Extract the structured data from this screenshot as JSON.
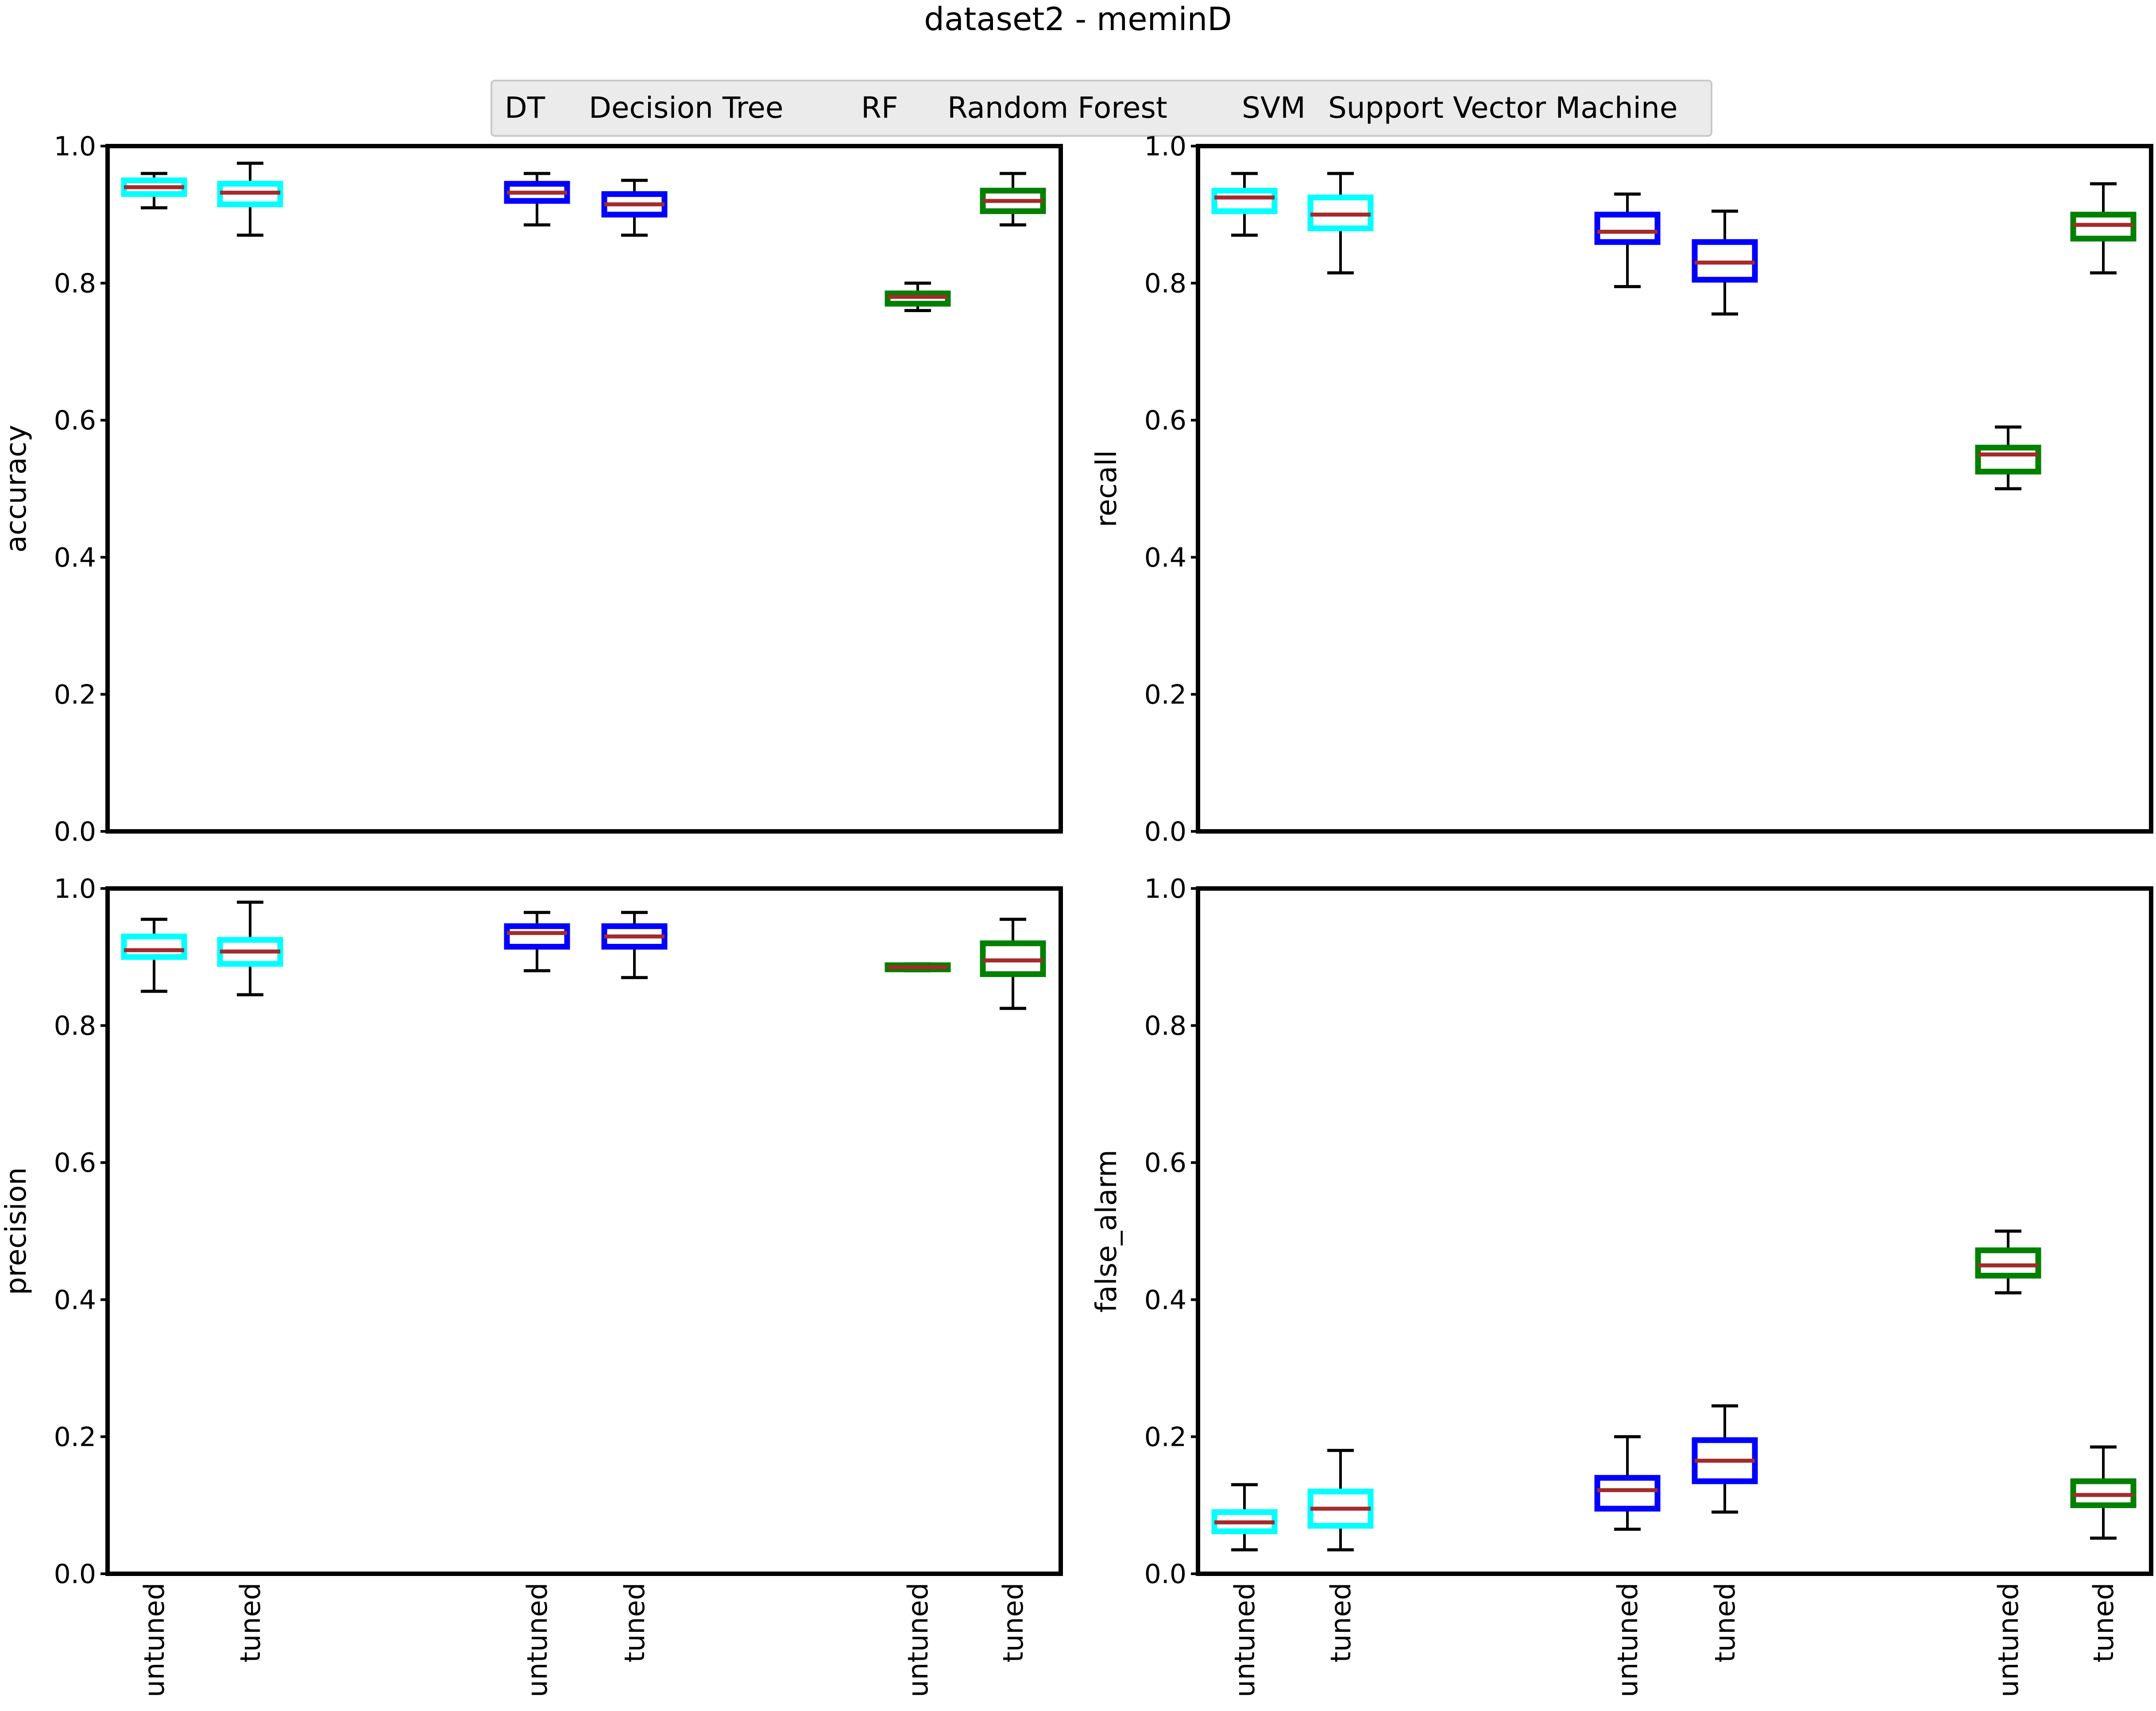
{
  "chart_data": {
    "type": "boxplot",
    "title": "dataset2 - meminD",
    "legend": {
      "placement": "top-center",
      "entries": [
        {
          "abbr": "DT",
          "label": "Decision Tree",
          "color": "#00ffff"
        },
        {
          "abbr": "RF",
          "label": "Random Forest",
          "color": "#0000ff"
        },
        {
          "abbr": "SVM",
          "label": "Support Vector Machine",
          "color": "#008000"
        }
      ]
    },
    "categories": [
      "untuned",
      "tuned",
      "untuned",
      "tuned",
      "untuned",
      "tuned"
    ],
    "group_colors": [
      "#00ffff",
      "#00ffff",
      "#0000ff",
      "#0000ff",
      "#008000",
      "#008000"
    ],
    "median_color": "#a52a2a",
    "ylim": [
      0,
      1.0
    ],
    "yticks": [
      "0.0",
      "0.2",
      "0.4",
      "0.6",
      "0.8",
      "1.0"
    ],
    "grid": false,
    "panels": [
      {
        "ylabel": "accuracy",
        "boxes": [
          {
            "min": 0.91,
            "q1": 0.93,
            "median": 0.94,
            "q3": 0.95,
            "max": 0.96
          },
          {
            "min": 0.87,
            "q1": 0.915,
            "median": 0.932,
            "q3": 0.945,
            "max": 0.975
          },
          {
            "min": 0.885,
            "q1": 0.92,
            "median": 0.932,
            "q3": 0.945,
            "max": 0.96
          },
          {
            "min": 0.87,
            "q1": 0.9,
            "median": 0.915,
            "q3": 0.93,
            "max": 0.95
          },
          {
            "min": 0.76,
            "q1": 0.77,
            "median": 0.78,
            "q3": 0.785,
            "max": 0.8
          },
          {
            "min": 0.885,
            "q1": 0.905,
            "median": 0.92,
            "q3": 0.935,
            "max": 0.96
          }
        ]
      },
      {
        "ylabel": "recall",
        "boxes": [
          {
            "min": 0.87,
            "q1": 0.905,
            "median": 0.925,
            "q3": 0.935,
            "max": 0.96
          },
          {
            "min": 0.815,
            "q1": 0.88,
            "median": 0.9,
            "q3": 0.925,
            "max": 0.96
          },
          {
            "min": 0.795,
            "q1": 0.86,
            "median": 0.875,
            "q3": 0.9,
            "max": 0.93
          },
          {
            "min": 0.755,
            "q1": 0.805,
            "median": 0.83,
            "q3": 0.86,
            "max": 0.905
          },
          {
            "min": 0.5,
            "q1": 0.525,
            "median": 0.55,
            "q3": 0.56,
            "max": 0.59
          },
          {
            "min": 0.815,
            "q1": 0.865,
            "median": 0.885,
            "q3": 0.9,
            "max": 0.945
          }
        ]
      },
      {
        "ylabel": "precision",
        "boxes": [
          {
            "min": 0.85,
            "q1": 0.9,
            "median": 0.91,
            "q3": 0.93,
            "max": 0.955
          },
          {
            "min": 0.845,
            "q1": 0.89,
            "median": 0.908,
            "q3": 0.925,
            "max": 0.98
          },
          {
            "min": 0.88,
            "q1": 0.915,
            "median": 0.935,
            "q3": 0.945,
            "max": 0.965
          },
          {
            "min": 0.87,
            "q1": 0.915,
            "median": 0.93,
            "q3": 0.945,
            "max": 0.965
          },
          {
            "min": 0.88,
            "q1": 0.882,
            "median": 0.885,
            "q3": 0.888,
            "max": 0.89
          },
          {
            "min": 0.825,
            "q1": 0.875,
            "median": 0.895,
            "q3": 0.92,
            "max": 0.955
          }
        ]
      },
      {
        "ylabel": "false_alarm",
        "boxes": [
          {
            "min": 0.035,
            "q1": 0.062,
            "median": 0.075,
            "q3": 0.09,
            "max": 0.13
          },
          {
            "min": 0.035,
            "q1": 0.07,
            "median": 0.095,
            "q3": 0.12,
            "max": 0.18
          },
          {
            "min": 0.065,
            "q1": 0.095,
            "median": 0.122,
            "q3": 0.14,
            "max": 0.2
          },
          {
            "min": 0.09,
            "q1": 0.135,
            "median": 0.165,
            "q3": 0.195,
            "max": 0.245
          },
          {
            "min": 0.41,
            "q1": 0.435,
            "median": 0.45,
            "q3": 0.472,
            "max": 0.5
          },
          {
            "min": 0.052,
            "q1": 0.1,
            "median": 0.115,
            "q3": 0.135,
            "max": 0.185
          }
        ]
      }
    ]
  }
}
